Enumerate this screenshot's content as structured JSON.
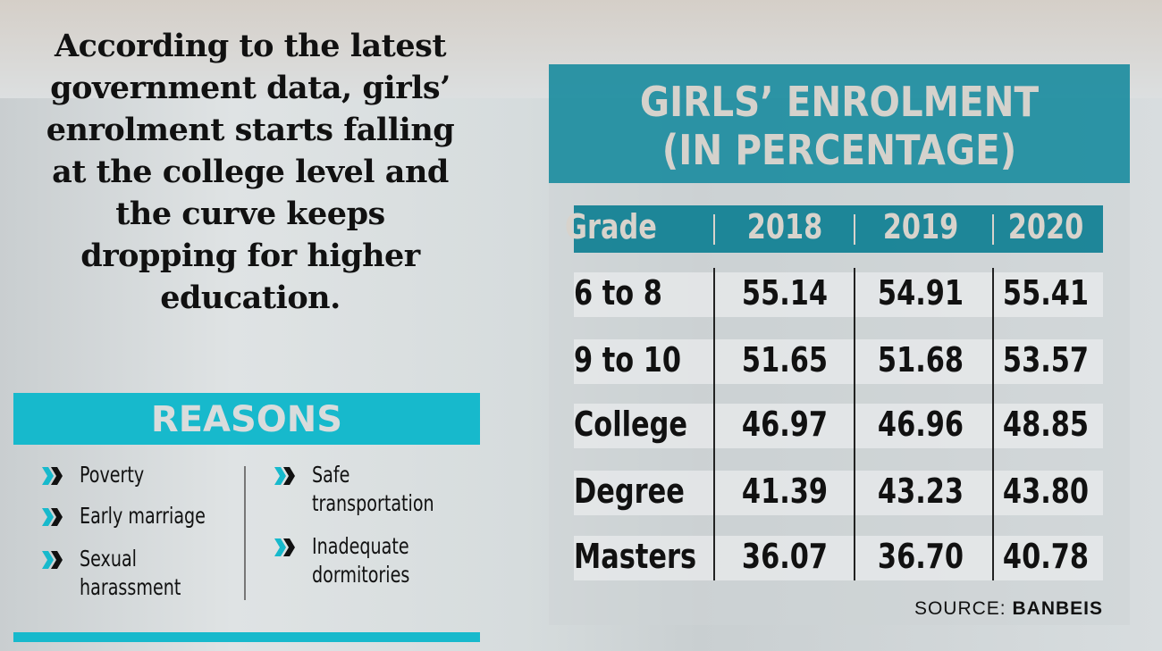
{
  "headline": "According to the latest government data, girls’ enrolment starts falling  at the college level and the curve keeps dropping for higher education.",
  "reasons": {
    "title": "REASONS",
    "left": [
      "Poverty",
      "Early marriage",
      "Sexual harassment"
    ],
    "right": [
      "Safe transportation",
      "Inadequate dormitories"
    ]
  },
  "colors": {
    "accent": "#17b9cc",
    "header": "#0e879b"
  },
  "chart_data": {
    "type": "table",
    "title_line1": "GIRLS’ ENROLMENT",
    "title_line2": "(IN PERCENTAGE)",
    "columns": [
      "Grade",
      "2018",
      "2019",
      "2020"
    ],
    "rows": [
      [
        "6 to 8",
        "55.14",
        "54.91",
        "55.41"
      ],
      [
        "9 to 10",
        "51.65",
        "51.68",
        "53.57"
      ],
      [
        "College",
        "46.97",
        "46.96",
        "48.85"
      ],
      [
        "Degree",
        "41.39",
        "43.23",
        "43.80"
      ],
      [
        "Masters",
        "36.07",
        "36.70",
        "40.78"
      ]
    ],
    "source_label": "SOURCE:",
    "source": "BANBEIS"
  }
}
